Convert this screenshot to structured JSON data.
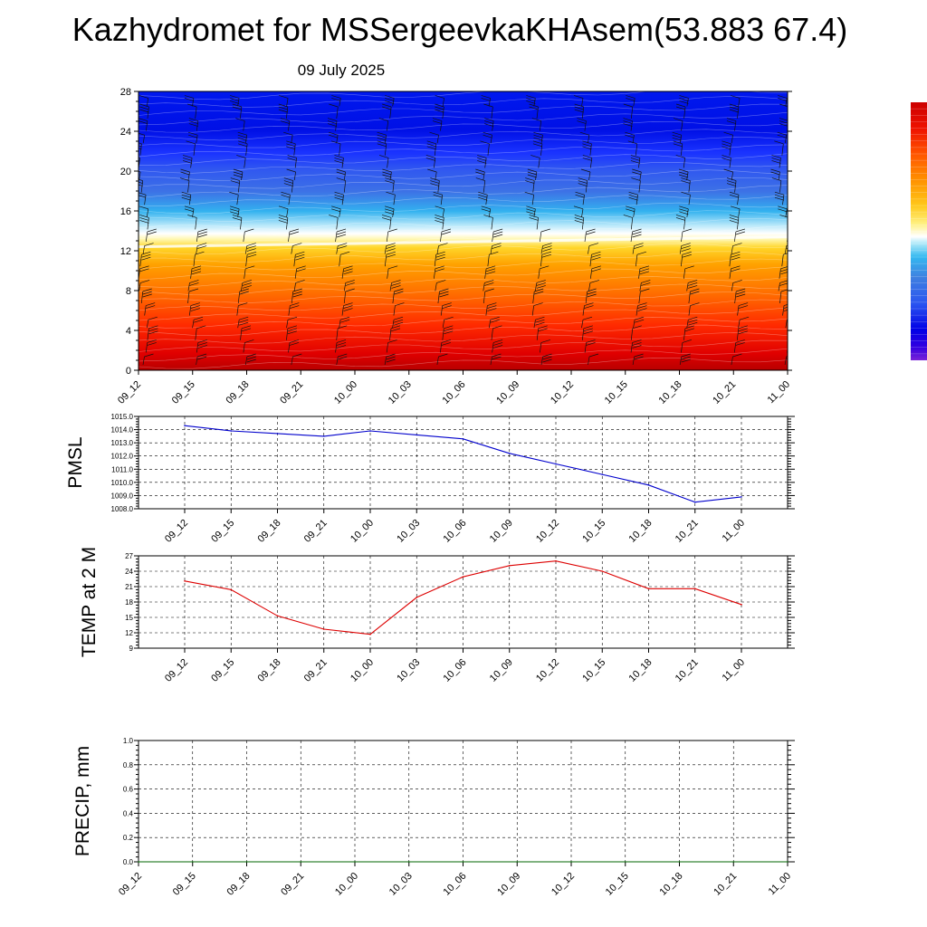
{
  "header": {
    "title": "Kazhydromet for MSSergeevkaKHAsem(53.883 67.4)",
    "date": "09 July 2025"
  },
  "colors": {
    "pmsl_line": "#0000cc",
    "temp_line": "#dd0000",
    "precip_line": "#006400",
    "colorbar": [
      "#6a1fd6",
      "#0000e0",
      "#1a3cff",
      "#3d6ee6",
      "#33b2ef",
      "#8fdcf5",
      "#ffffff",
      "#fff48a",
      "#ffd52a",
      "#ffa500",
      "#ff6a00",
      "#ff2a00",
      "#e60000",
      "#b30000"
    ]
  },
  "chart_data": [
    {
      "type": "heatmap",
      "x_labels": [
        "09_12",
        "09_15",
        "09_18",
        "09_21",
        "10_00",
        "10_03",
        "10_06",
        "10_09",
        "10_12",
        "10_15",
        "10_18",
        "10_21",
        "11_00"
      ],
      "y_ticks": [
        "0",
        "4",
        "8",
        "12",
        "16",
        "20",
        "24",
        "28"
      ],
      "ylim": [
        0,
        28
      ],
      "freezing_level_start": 12.4,
      "freezing_level_end": 13.4,
      "wind_barbs": true
    },
    {
      "type": "line",
      "ylabel": "PMSL",
      "x_labels": [
        "09_12",
        "09_15",
        "09_18",
        "09_21",
        "10_00",
        "10_03",
        "10_06",
        "10_09",
        "10_12",
        "10_15",
        "10_18",
        "10_21",
        "11_00"
      ],
      "y_ticks": [
        "1008.0",
        "1009.0",
        "1010.0",
        "1011.0",
        "1012.0",
        "1013.0",
        "1014.0",
        "1015.0"
      ],
      "ylim": [
        1008,
        1015
      ],
      "values": [
        1014.3,
        1013.9,
        1013.7,
        1013.5,
        1013.9,
        1013.6,
        1013.3,
        1012.2,
        1011.4,
        1010.6,
        1009.8,
        1008.5,
        1008.9
      ]
    },
    {
      "type": "line",
      "ylabel": "TEMP at 2 M",
      "x_labels": [
        "09_12",
        "09_15",
        "09_18",
        "09_21",
        "10_00",
        "10_03",
        "10_06",
        "10_09",
        "10_12",
        "10_15",
        "10_18",
        "10_21",
        "11_00"
      ],
      "y_ticks": [
        "9",
        "12",
        "15",
        "18",
        "21",
        "24",
        "27"
      ],
      "ylim": [
        9,
        27
      ],
      "values": [
        22.1,
        20.4,
        15.3,
        12.7,
        11.7,
        18.9,
        22.9,
        25.1,
        26.0,
        24.0,
        20.6,
        20.6,
        17.5
      ]
    },
    {
      "type": "line",
      "ylabel": "PRECIP, mm",
      "x_labels": [
        "09_12",
        "09_15",
        "09_18",
        "09_21",
        "10_00",
        "10_03",
        "10_06",
        "10_09",
        "10_12",
        "10_15",
        "10_18",
        "10_21",
        "11_00"
      ],
      "y_ticks": [
        "0.0",
        "0.2",
        "0.4",
        "0.6",
        "0.8",
        "1.0"
      ],
      "ylim": [
        0,
        1
      ],
      "values": [
        0,
        0,
        0,
        0,
        0,
        0,
        0,
        0,
        0,
        0,
        0,
        0,
        0
      ]
    }
  ]
}
